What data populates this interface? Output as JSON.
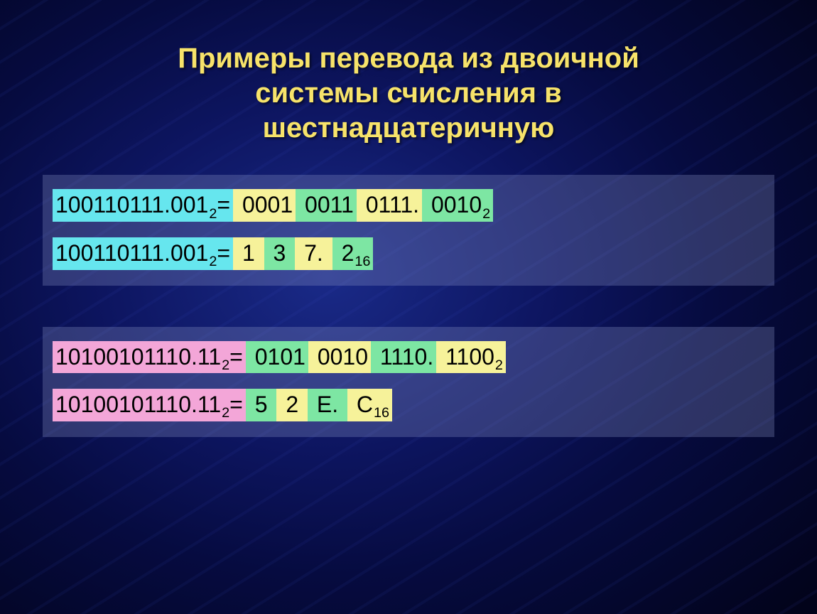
{
  "title": {
    "lines": [
      "Примеры перевода из двоичной",
      "системы счисления в",
      "шестнадцатеричную"
    ],
    "color": "#f7e36a",
    "fontsize": 40
  },
  "colors": {
    "cyan": "#66e6ee",
    "yellow": "#f6f29a",
    "green": "#7de6a3",
    "pink": "#f3a6d8",
    "text": "#000000"
  },
  "cell_style": {
    "fontsize": 32
  },
  "examples": [
    {
      "rows": [
        {
          "cells": [
            {
              "text": "100110111.001",
              "sub": "2",
              "after": "=",
              "bg": "cyan"
            },
            {
              "text": " 0001",
              "bg": "yellow"
            },
            {
              "text": " 0011",
              "bg": "green"
            },
            {
              "text": " 0111.",
              "bg": "yellow"
            },
            {
              "text": " 0010",
              "sub": "2",
              "bg": "green"
            }
          ]
        },
        {
          "cells": [
            {
              "text": "100110111.001",
              "sub": "2",
              "after": "=",
              "bg": "cyan"
            },
            {
              "text": " 1 ",
              "bg": "yellow"
            },
            {
              "text": " 3 ",
              "bg": "green"
            },
            {
              "text": " 7. ",
              "bg": "yellow"
            },
            {
              "text": " 2",
              "sub": "16",
              "bg": "green"
            }
          ]
        }
      ]
    },
    {
      "rows": [
        {
          "cells": [
            {
              "text": "10100101110.11",
              "sub": "2",
              "after": "=",
              "bg": "pink"
            },
            {
              "text": " 0101",
              "bg": "green"
            },
            {
              "text": " 0010",
              "bg": "yellow"
            },
            {
              "text": " 1110.",
              "bg": "green"
            },
            {
              "text": " 1100",
              "sub": "2",
              "bg": "yellow"
            }
          ]
        },
        {
          "cells": [
            {
              "text": "10100101110.11",
              "sub": "2",
              "after": "=",
              "bg": "pink"
            },
            {
              "text": " 5 ",
              "bg": "green"
            },
            {
              "text": " 2 ",
              "bg": "yellow"
            },
            {
              "text": " E. ",
              "bg": "green"
            },
            {
              "text": " C",
              "sub": "16",
              "bg": "yellow"
            }
          ]
        }
      ]
    }
  ]
}
